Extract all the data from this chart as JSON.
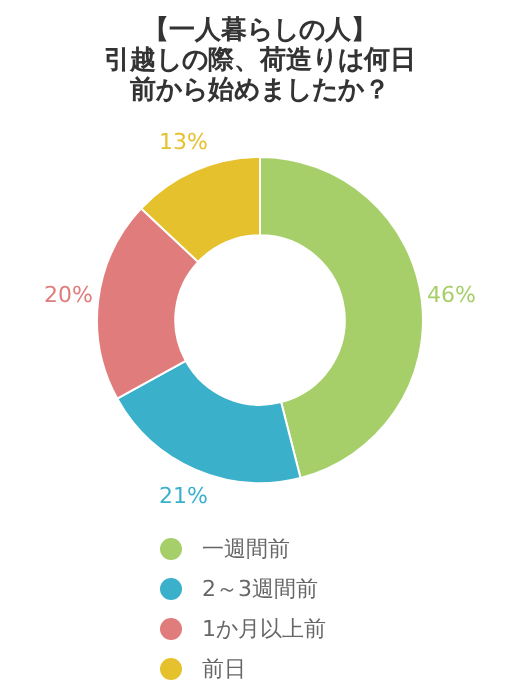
{
  "chart_data": {
    "type": "donut",
    "title": "【一人暮らしの人】",
    "subtitle": "引越しの際、荷造りは何日前から始めましたか？",
    "categories": [
      "一週間前",
      "2～3週間前",
      "1か月以上前",
      "前日"
    ],
    "values": [
      46,
      21,
      20,
      13
    ],
    "colors": [
      "#a6cf6a",
      "#3ab0cb",
      "#e07c7c",
      "#e6c12e"
    ],
    "value_labels": [
      "46%",
      "21%",
      "20%",
      "13%"
    ],
    "legend": "bottom"
  }
}
